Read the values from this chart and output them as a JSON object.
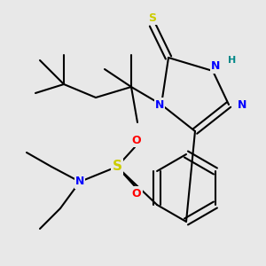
{
  "bg_color": "#e8e8e8",
  "bond_color": "#000000",
  "bond_lw": 1.5,
  "atom_colors": {
    "S_thiol": "#cccc00",
    "N": "#0000ff",
    "H": "#008888",
    "S_sulfone": "#cccc00",
    "O": "#ff0000",
    "C": "#000000"
  },
  "figsize": [
    3.0,
    3.0
  ],
  "dpi": 100
}
